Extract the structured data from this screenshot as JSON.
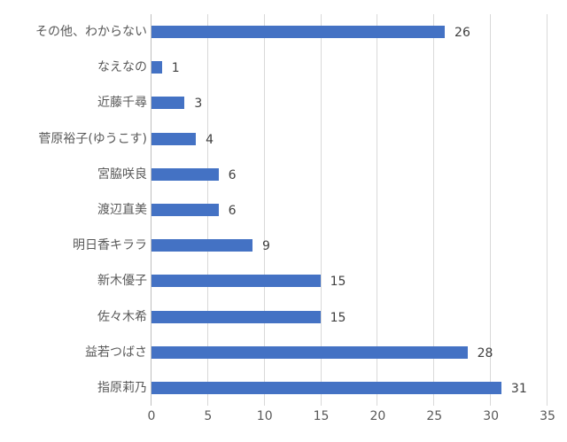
{
  "chart_data": {
    "type": "bar",
    "orientation": "horizontal",
    "title": "",
    "xlabel": "",
    "ylabel": "",
    "categories": [
      "その他、わからない",
      "なえなの",
      "近藤千尋",
      "菅原裕子(ゆうこす)",
      "宮脇咲良",
      "渡辺直美",
      "明日香キララ",
      "新木優子",
      "佐々木希",
      "益若つばさ",
      "指原莉乃"
    ],
    "values": [
      26,
      1,
      3,
      4,
      6,
      6,
      9,
      15,
      15,
      28,
      31
    ],
    "data_labels": [
      "26",
      "1",
      "3",
      "4",
      "6",
      "6",
      "9",
      "15",
      "15",
      "28",
      "31"
    ],
    "xlim": [
      0,
      35
    ],
    "x_ticks": [
      0,
      5,
      10,
      15,
      20,
      25,
      30,
      35
    ],
    "x_tick_labels": [
      "0",
      "5",
      "10",
      "15",
      "20",
      "25",
      "30",
      "35"
    ],
    "grid": true,
    "legend": "none",
    "bar_color": "#4472C4"
  }
}
